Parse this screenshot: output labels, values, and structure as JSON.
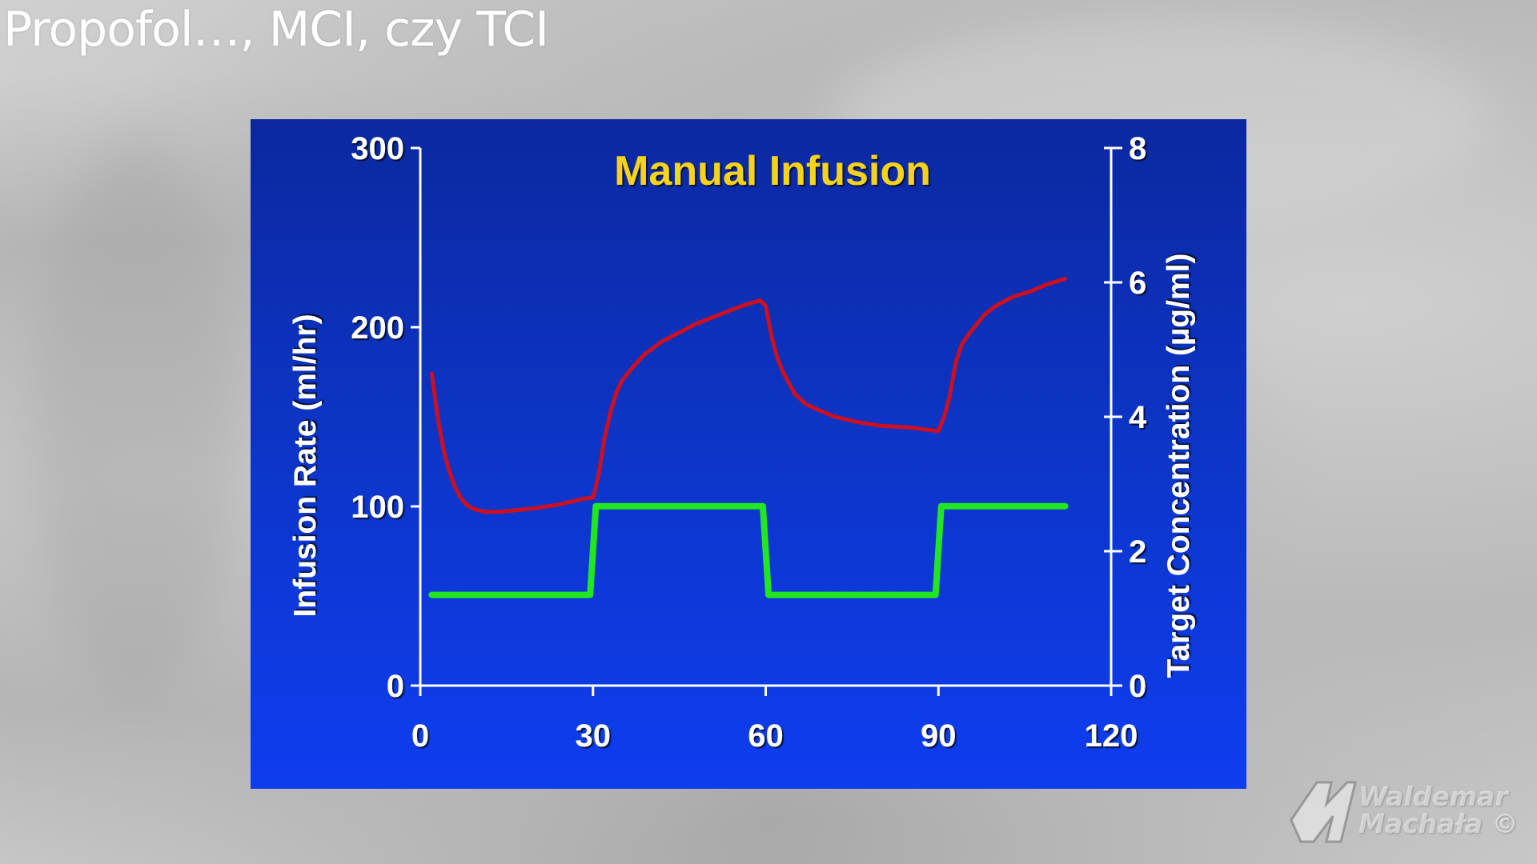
{
  "slide": {
    "title": "Propofol…, MCI, czy TCI"
  },
  "watermark": {
    "line1": "Waldemar",
    "line2": "Machała",
    "symbol": "©"
  },
  "colors": {
    "panel_top": "#0b28a0",
    "panel_bottom": "#0e3df0",
    "title": "#f5d21a",
    "axis": "#ffffff",
    "infusion_rate": "#cc1020",
    "target_concentration": "#22e622"
  },
  "chart_data": {
    "type": "line",
    "title": "Manual Infusion",
    "xlabel": "",
    "ylabel": "Infusion Rate (ml/hr)",
    "y2label": "Target Concentration (µg/ml)",
    "xlim": [
      0,
      120
    ],
    "ylim": [
      0,
      300
    ],
    "y2lim": [
      0,
      8
    ],
    "x_ticks": [
      "0",
      "30",
      "60",
      "90",
      "120"
    ],
    "y_ticks": [
      "0",
      "100",
      "200",
      "300"
    ],
    "y2_ticks": [
      "0",
      "2",
      "4",
      "6",
      "8"
    ],
    "grid": false,
    "legend": "none",
    "series": [
      {
        "axis": "left",
        "color": "#cc1020",
        "x": [
          2,
          3,
          4,
          5,
          6,
          7,
          8,
          9,
          10,
          11,
          12,
          14,
          17,
          20,
          24,
          28,
          30,
          31,
          32,
          33,
          34,
          35,
          37,
          39,
          42,
          45,
          48,
          52,
          56,
          59,
          60,
          61,
          62,
          63,
          64,
          65,
          67,
          69,
          72,
          76,
          80,
          85,
          90,
          91,
          92,
          93,
          94,
          95,
          96,
          97,
          98,
          100,
          103,
          106,
          109,
          112
        ],
        "y": [
          174,
          150,
          132,
          120,
          111,
          105,
          101,
          99,
          98,
          97,
          97,
          97,
          98,
          99,
          101,
          104,
          105,
          118,
          138,
          152,
          163,
          170,
          178,
          185,
          192,
          197,
          202,
          207,
          212,
          215,
          212,
          195,
          183,
          175,
          169,
          163,
          157,
          154,
          150,
          147,
          145,
          144,
          142,
          150,
          162,
          180,
          190,
          195,
          199,
          203,
          207,
          212,
          217,
          220,
          224,
          227
        ]
      },
      {
        "axis": "right",
        "color": "#22e622",
        "x": [
          2,
          29.5,
          30.5,
          59.5,
          60.5,
          89.5,
          90.5,
          112
        ],
        "y": [
          1.35,
          1.35,
          2.67,
          2.67,
          1.35,
          1.35,
          2.67,
          2.67
        ]
      }
    ]
  }
}
